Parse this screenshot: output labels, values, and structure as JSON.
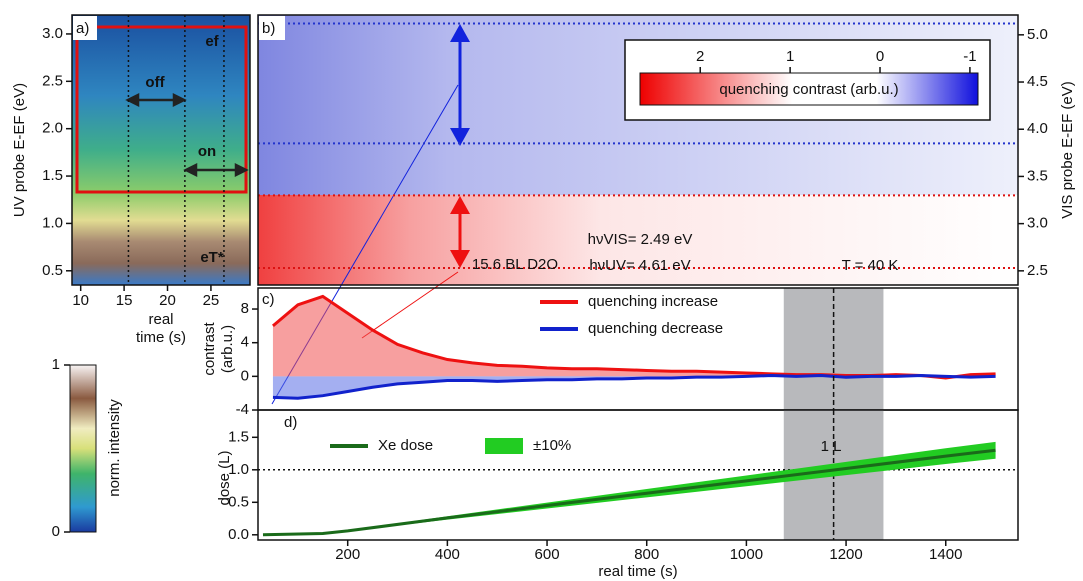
{
  "chart_data": [
    {
      "type": "heatmap",
      "panel": "a)",
      "ylabel": "UV probe E-EF (eV)",
      "xlabel_lines": [
        "real",
        "time (s)"
      ],
      "xlim": [
        9,
        29.5
      ],
      "xticks": [
        10,
        15,
        20,
        25
      ],
      "ylim": [
        0.35,
        3.2
      ],
      "yticks": [
        0.5,
        {
          "value": 1,
          "label": "1.0"
        },
        1.5,
        {
          "value": 2,
          "label": "2.0"
        },
        2.5,
        {
          "value": 3,
          "label": "3.0"
        }
      ],
      "marker_lines": [
        15.5,
        22,
        26.5
      ],
      "annotations": [
        "off",
        "on",
        "ef",
        "eT*"
      ]
    },
    {
      "type": "colorbar",
      "label": "norm. intensity",
      "ylim": [
        0,
        1
      ],
      "yticks": [
        0,
        1
      ]
    },
    {
      "type": "heatmap",
      "panel": "b)",
      "ylabel": "VIS probe E-EF (eV)",
      "xlim": [
        20,
        1545
      ],
      "y2lim": [
        2.35,
        5.21
      ],
      "y2ticks": [
        2.5,
        {
          "value": 3,
          "label": "3.0"
        },
        3.5,
        {
          "value": 4,
          "label": "4.0"
        },
        4.5,
        {
          "value": 5,
          "label": "5.0"
        }
      ],
      "marker_lines": [
        5.12,
        3.85,
        3.3,
        2.53
      ],
      "marker_colors": [
        "#2233cc",
        "#2233cc",
        "#dd1111",
        "#dd1111"
      ],
      "annotations": [
        "15.6 BL D2O",
        "hνVIS= 2.49 eV",
        "hνUV= 4.61 eV",
        "T = 40 K"
      ]
    },
    {
      "type": "colorbar",
      "label": "quenching contrast (arb.u.)",
      "xlim": [
        2.67,
        -1.09
      ],
      "xticks": [
        2,
        1,
        0,
        -1
      ]
    },
    {
      "type": "area-line",
      "panel": "c)",
      "ylabel_lines": [
        "contrast",
        "(arb.u.)"
      ],
      "xlim": [
        20,
        1545
      ],
      "ylim": [
        -4,
        10.5
      ],
      "yticks": [
        -4,
        0,
        4,
        8
      ],
      "x": [
        50,
        100,
        150,
        200,
        250,
        300,
        350,
        400,
        450,
        500,
        550,
        600,
        650,
        700,
        750,
        800,
        850,
        900,
        950,
        1000,
        1050,
        1100,
        1150,
        1200,
        1250,
        1300,
        1350,
        1400,
        1450,
        1500
      ],
      "series": [
        {
          "name": "quenching increase",
          "color": "#ee1111",
          "values": [
            6,
            8.5,
            9.5,
            7.5,
            5.5,
            3.8,
            2.8,
            2,
            1.6,
            1.3,
            1.2,
            1,
            0.9,
            0.9,
            0.8,
            0.7,
            0.6,
            0.6,
            0.5,
            0.4,
            0.3,
            0.2,
            0.2,
            0.1,
            0.1,
            0.2,
            0.1,
            -0.2,
            0.2,
            0.3
          ]
        },
        {
          "name": "quenching decrease",
          "color": "#1122cc",
          "values": [
            -2.5,
            -2.6,
            -2.3,
            -1.8,
            -1.3,
            -0.9,
            -0.7,
            -0.5,
            -0.5,
            -0.6,
            -0.5,
            -0.4,
            -0.4,
            -0.3,
            -0.3,
            -0.2,
            -0.2,
            -0.1,
            -0.1,
            0,
            0.1,
            0,
            0.1,
            -0.1,
            0,
            0,
            0.1,
            0,
            -0.1,
            0
          ]
        }
      ],
      "shaded_range": [
        1075,
        1275
      ],
      "vline": 1175,
      "legend": "upper right"
    },
    {
      "type": "line",
      "panel": "d)",
      "xlabel": "real time (s)",
      "ylabel": "dose (L)",
      "xlim": [
        20,
        1545
      ],
      "xticks": [
        200,
        400,
        600,
        800,
        1000,
        1200,
        1400
      ],
      "ylim": [
        -0.08,
        1.92
      ],
      "yticks": [
        {
          "value": 0,
          "label": "0.0"
        },
        0.5,
        {
          "value": 1,
          "label": "1.0"
        },
        1.5
      ],
      "x": [
        30,
        150,
        200,
        400,
        600,
        800,
        1000,
        1200,
        1400,
        1500
      ],
      "series": [
        {
          "name": "Xe dose",
          "color": "#1a6b1a",
          "values": [
            0,
            0.02,
            0.06,
            0.26,
            0.45,
            0.64,
            0.83,
            1.02,
            1.21,
            1.3
          ]
        }
      ],
      "band": {
        "name": "±10%",
        "color": "#22cc22",
        "lower": [
          0,
          0.018,
          0.054,
          0.234,
          0.405,
          0.576,
          0.747,
          0.918,
          1.089,
          1.17
        ],
        "upper": [
          0,
          0.022,
          0.066,
          0.286,
          0.495,
          0.704,
          0.913,
          1.122,
          1.331,
          1.43
        ]
      },
      "shaded_range": [
        1075,
        1275
      ],
      "vline": 1175,
      "hline": 1,
      "annotation": "1 L",
      "legend": "upper left"
    }
  ]
}
